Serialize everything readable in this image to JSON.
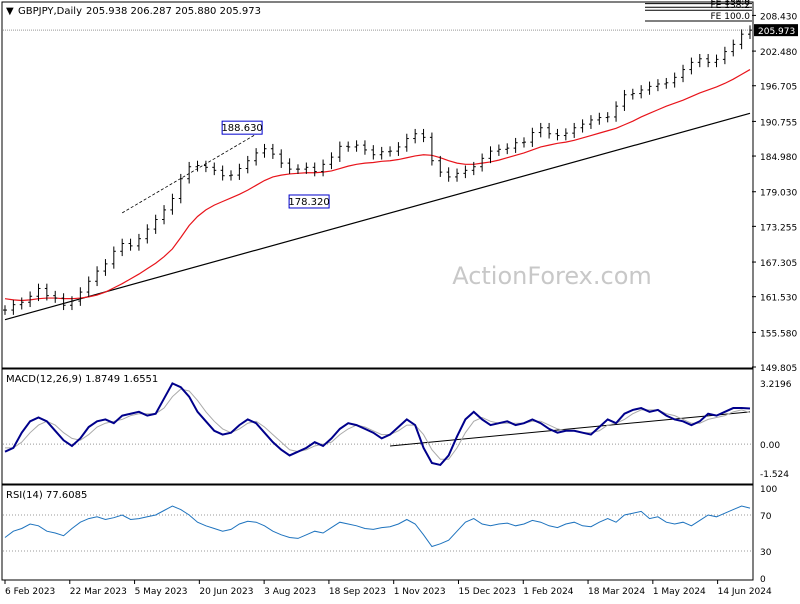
{
  "header": {
    "symbol": "GBPJPY,Daily",
    "ohlc": "205.938 206.287 205.880 205.973"
  },
  "watermark": "ActionForex.com",
  "colors": {
    "candle": "#000000",
    "ema": "#e8141b",
    "trendline": "#000000",
    "macd": "#00008b",
    "signal": "#aaaaaa",
    "rsi": "#1e73be",
    "grid_dotted": "#999999",
    "box_border": "#0000cc"
  },
  "chart_data": [
    {
      "type": "line",
      "panel": "price",
      "title": "GBPJPY,Daily",
      "ohlc_text": "205.938 206.287 205.880 205.973",
      "x_tick_labels": [
        "6 Feb 2023",
        "22 Mar 2023",
        "5 May 2023",
        "20 Jun 2023",
        "3 Aug 2023",
        "18 Sep 2023",
        "1 Nov 2023",
        "15 Dec 2023",
        "1 Feb 2024",
        "18 Mar 2024",
        "1 May 2024",
        "14 Jun 2024"
      ],
      "y_ticks": [
        "208.430",
        "202.480",
        "196.705",
        "190.755",
        "184.980",
        "179.030",
        "173.255",
        "167.305",
        "161.530",
        "155.580",
        "149.805"
      ],
      "ylim": [
        149.805,
        210.5
      ],
      "last_price": "205.973",
      "fib_levels": [
        {
          "label": "FE 161.8",
          "value": 210.4
        },
        {
          "label": "FE 150.0",
          "value": 209.8
        },
        {
          "label": "FE 138.2",
          "value": 209.3
        },
        {
          "label": "FE 100.0",
          "value": 207.5
        }
      ],
      "annotations": [
        {
          "text": "188.630",
          "value": 188.63,
          "x_index": 30
        },
        {
          "text": "178.320",
          "value": 178.32,
          "x_index": 38
        }
      ],
      "series": [
        {
          "name": "price",
          "values": [
            159.3,
            160.2,
            160.6,
            161.6,
            162.9,
            161.7,
            161.3,
            160.1,
            160.8,
            162.3,
            164.1,
            165.8,
            167.0,
            169.1,
            170.4,
            170.0,
            171.2,
            172.8,
            174.4,
            176.0,
            177.9,
            181.2,
            183.2,
            183.4,
            183.1,
            182.6,
            181.7,
            181.8,
            182.9,
            184.2,
            185.5,
            186.2,
            185.3,
            183.8,
            182.8,
            182.8,
            183.1,
            182.4,
            183.6,
            184.8,
            186.6,
            186.5,
            186.8,
            186.0,
            185.2,
            185.7,
            185.8,
            186.5,
            187.9,
            188.7,
            188.1,
            184.2,
            182.3,
            181.5,
            182.1,
            182.6,
            183.2,
            184.6,
            185.8,
            186.1,
            186.3,
            187.2,
            187.3,
            188.9,
            189.7,
            188.7,
            188.4,
            188.8,
            189.7,
            190.3,
            191.0,
            191.4,
            191.5,
            193.3,
            195.2,
            195.4,
            196.0,
            196.6,
            197.0,
            197.2,
            198.1,
            199.4,
            200.6,
            201.2,
            200.6,
            201.1,
            202.4,
            203.6,
            205.3,
            205.973
          ]
        },
        {
          "name": "EMA",
          "values": [
            161.2,
            161.0,
            160.9,
            161.0,
            161.2,
            161.3,
            161.3,
            161.2,
            161.2,
            161.3,
            161.5,
            161.8,
            162.3,
            163.0,
            163.7,
            164.5,
            165.3,
            166.2,
            167.1,
            168.2,
            169.5,
            171.4,
            173.4,
            174.9,
            176.0,
            176.8,
            177.4,
            178.0,
            178.6,
            179.3,
            180.1,
            180.9,
            181.5,
            181.8,
            182.0,
            182.1,
            182.2,
            182.2,
            182.3,
            182.5,
            182.9,
            183.3,
            183.6,
            183.8,
            183.9,
            184.1,
            184.2,
            184.4,
            184.7,
            185.0,
            185.2,
            185.1,
            184.7,
            184.2,
            183.8,
            183.6,
            183.6,
            183.8,
            184.0,
            184.3,
            184.7,
            185.1,
            185.5,
            186.0,
            186.5,
            186.8,
            187.1,
            187.3,
            187.6,
            188.0,
            188.4,
            188.8,
            189.2,
            189.6,
            190.2,
            190.8,
            191.5,
            192.1,
            192.7,
            193.3,
            193.8,
            194.3,
            194.9,
            195.5,
            196.0,
            196.5,
            197.1,
            197.8,
            198.6,
            199.4
          ]
        }
      ],
      "trendline": {
        "start": 157.7,
        "end": 192.1
      }
    },
    {
      "type": "line",
      "panel": "macd",
      "title": "MACD(12,26,9) 1.8749 1.6551",
      "y_ticks": [
        "3.2196",
        "0.00",
        "-1.524"
      ],
      "ylim": [
        -2.0,
        3.8
      ],
      "series": [
        {
          "name": "MACD",
          "values": [
            -0.4,
            -0.2,
            0.6,
            1.2,
            1.4,
            1.2,
            0.7,
            0.2,
            -0.1,
            0.3,
            0.9,
            1.2,
            1.3,
            1.1,
            1.5,
            1.6,
            1.7,
            1.5,
            1.6,
            2.4,
            3.2,
            3.0,
            2.5,
            1.7,
            1.2,
            0.7,
            0.5,
            0.6,
            1.0,
            1.3,
            1.1,
            0.6,
            0.1,
            -0.3,
            -0.6,
            -0.4,
            -0.2,
            0.1,
            -0.1,
            0.3,
            0.8,
            1.1,
            1.0,
            0.8,
            0.6,
            0.3,
            0.5,
            0.9,
            1.3,
            1.0,
            -0.2,
            -1.0,
            -1.1,
            -0.6,
            0.4,
            1.3,
            1.7,
            1.3,
            1.0,
            1.1,
            1.2,
            1.0,
            1.1,
            1.3,
            1.1,
            0.8,
            0.6,
            0.7,
            0.7,
            0.6,
            0.5,
            0.9,
            1.3,
            1.1,
            1.6,
            1.8,
            1.9,
            1.7,
            1.8,
            1.5,
            1.3,
            1.2,
            1.0,
            1.2,
            1.6,
            1.5,
            1.7,
            1.9,
            1.9,
            1.875
          ]
        },
        {
          "name": "Signal",
          "values": [
            -0.2,
            -0.2,
            0.1,
            0.6,
            1.0,
            1.2,
            1.0,
            0.6,
            0.3,
            0.2,
            0.5,
            0.9,
            1.1,
            1.2,
            1.3,
            1.5,
            1.6,
            1.6,
            1.6,
            1.9,
            2.5,
            2.9,
            2.8,
            2.3,
            1.7,
            1.2,
            0.8,
            0.6,
            0.8,
            1.1,
            1.2,
            0.9,
            0.5,
            0.1,
            -0.3,
            -0.4,
            -0.3,
            -0.1,
            0.0,
            0.1,
            0.5,
            0.8,
            1.0,
            0.9,
            0.7,
            0.5,
            0.5,
            0.7,
            1.0,
            1.0,
            0.5,
            -0.3,
            -0.8,
            -0.8,
            -0.2,
            0.6,
            1.2,
            1.4,
            1.2,
            1.1,
            1.1,
            1.1,
            1.1,
            1.2,
            1.2,
            1.0,
            0.8,
            0.7,
            0.7,
            0.6,
            0.6,
            0.7,
            1.0,
            1.1,
            1.3,
            1.6,
            1.8,
            1.8,
            1.8,
            1.6,
            1.5,
            1.3,
            1.1,
            1.1,
            1.3,
            1.4,
            1.5,
            1.7,
            1.8,
            1.655
          ]
        }
      ],
      "trendline": {
        "start_index": 46,
        "start": -0.1,
        "end": 1.7
      }
    },
    {
      "type": "line",
      "panel": "rsi",
      "title": "RSI(14) 77.6085",
      "y_ticks": [
        "100",
        "70",
        "30",
        "0"
      ],
      "ylim": [
        0,
        100
      ],
      "levels": [
        70,
        30
      ],
      "series": [
        {
          "name": "RSI",
          "values": [
            45,
            52,
            55,
            60,
            58,
            52,
            50,
            47,
            55,
            62,
            66,
            68,
            65,
            67,
            70,
            65,
            66,
            68,
            70,
            75,
            80,
            76,
            70,
            62,
            58,
            55,
            52,
            54,
            60,
            63,
            62,
            58,
            52,
            48,
            45,
            44,
            48,
            52,
            50,
            56,
            62,
            60,
            58,
            55,
            54,
            56,
            57,
            60,
            65,
            60,
            48,
            35,
            38,
            42,
            52,
            62,
            66,
            60,
            58,
            60,
            61,
            58,
            60,
            64,
            62,
            58,
            56,
            60,
            62,
            58,
            57,
            62,
            66,
            62,
            70,
            72,
            74,
            66,
            68,
            62,
            60,
            62,
            58,
            64,
            70,
            68,
            72,
            76,
            80,
            77.6085
          ]
        }
      ]
    }
  ]
}
